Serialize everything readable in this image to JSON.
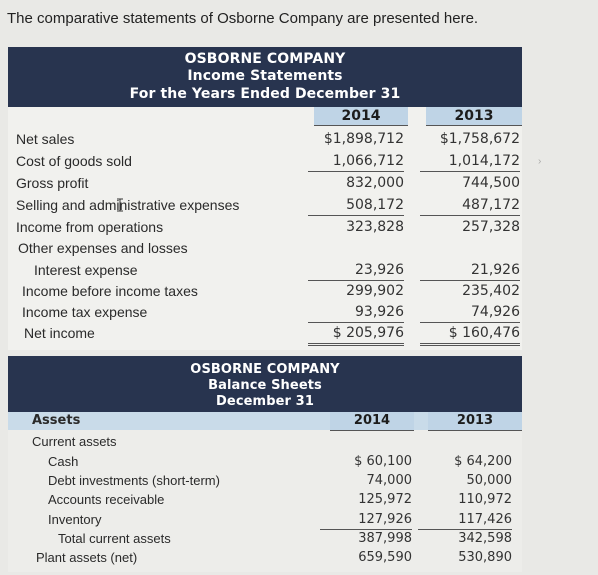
{
  "intro": "The comparative statements of Osborne Company are presented here.",
  "income": {
    "company": "OSBORNE COMPANY",
    "title": "Income Statements",
    "period": "For the Years Ended December 31",
    "col2014": "2014",
    "col2013": "2013",
    "rows": [
      {
        "label": "Net sales",
        "v2014": "$1,898,712",
        "v2013": "$1,758,672"
      },
      {
        "label": "Cost of goods sold",
        "v2014": "1,066,712",
        "v2013": "1,014,172"
      },
      {
        "label": "Gross profit",
        "v2014": "832,000",
        "v2013": "744,500"
      },
      {
        "label": "Selling and administrative expenses",
        "v2014": "508,172",
        "v2013": "487,172"
      },
      {
        "label": "Income from operations",
        "v2014": "323,828",
        "v2013": "257,328"
      },
      {
        "label": "Other expenses and losses",
        "v2014": "",
        "v2013": ""
      },
      {
        "label": "Interest expense",
        "v2014": "23,926",
        "v2013": "21,926"
      },
      {
        "label": "Income before income taxes",
        "v2014": "299,902",
        "v2013": "235,402"
      },
      {
        "label": "Income tax expense",
        "v2014": "93,926",
        "v2013": "74,926"
      },
      {
        "label": "Net income",
        "v2014": "$ 205,976",
        "v2013": "$ 160,476"
      }
    ]
  },
  "balance": {
    "company": "OSBORNE COMPANY",
    "title": "Balance Sheets",
    "date": "December 31",
    "assets_label": "Assets",
    "col2014": "2014",
    "col2013": "2013",
    "rows": [
      {
        "label": "Current assets",
        "v2014": "",
        "v2013": ""
      },
      {
        "label": "Cash",
        "v2014": "$ 60,100",
        "v2013": "$ 64,200"
      },
      {
        "label": "Debt investments (short-term)",
        "v2014": "74,000",
        "v2013": "50,000"
      },
      {
        "label": "Accounts receivable",
        "v2014": "125,972",
        "v2013": "110,972"
      },
      {
        "label": "Inventory",
        "v2014": "127,926",
        "v2013": "117,426"
      },
      {
        "label": "Total current assets",
        "v2014": "387,998",
        "v2013": "342,598"
      },
      {
        "label": "Plant assets (net)",
        "v2014": "659,590",
        "v2013": "530,890"
      }
    ]
  }
}
